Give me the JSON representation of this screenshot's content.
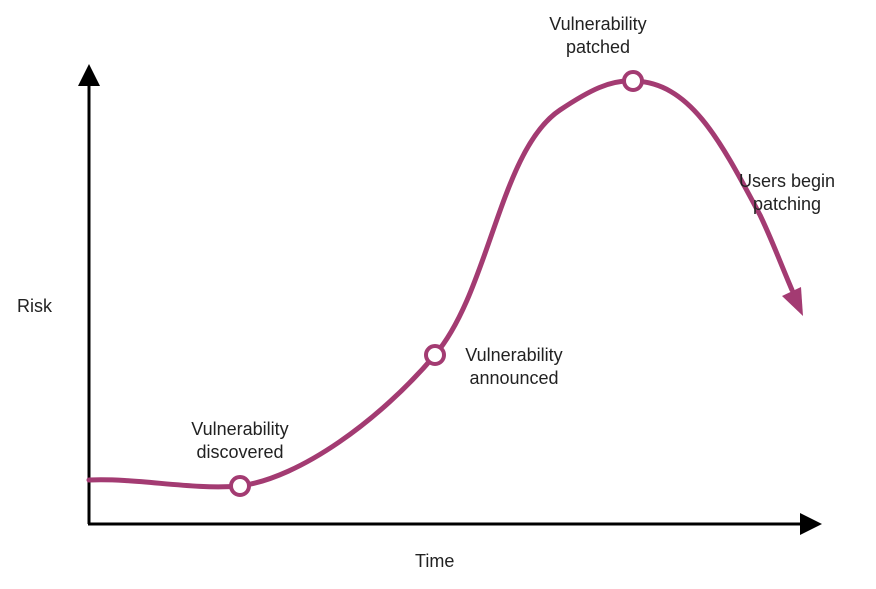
{
  "axes": {
    "x_label": "Time",
    "y_label": "Risk"
  },
  "events": [
    {
      "id": "discovered",
      "line1": "Vulnerability",
      "line2": "discovered"
    },
    {
      "id": "announced",
      "line1": "Vulnerability",
      "line2": "announced"
    },
    {
      "id": "patched",
      "line1": "Vulnerability",
      "line2": "patched"
    }
  ],
  "end_note": {
    "line1": "Users begin",
    "line2": "patching"
  },
  "colors": {
    "curve": "#a33b72",
    "axis": "#000000",
    "marker_fill": "#ffffff",
    "text": "#222222"
  },
  "icons": {
    "curve_end": "arrowhead-icon",
    "axis_ends": "arrowhead-icon",
    "event_marker": "circle-marker-icon"
  }
}
